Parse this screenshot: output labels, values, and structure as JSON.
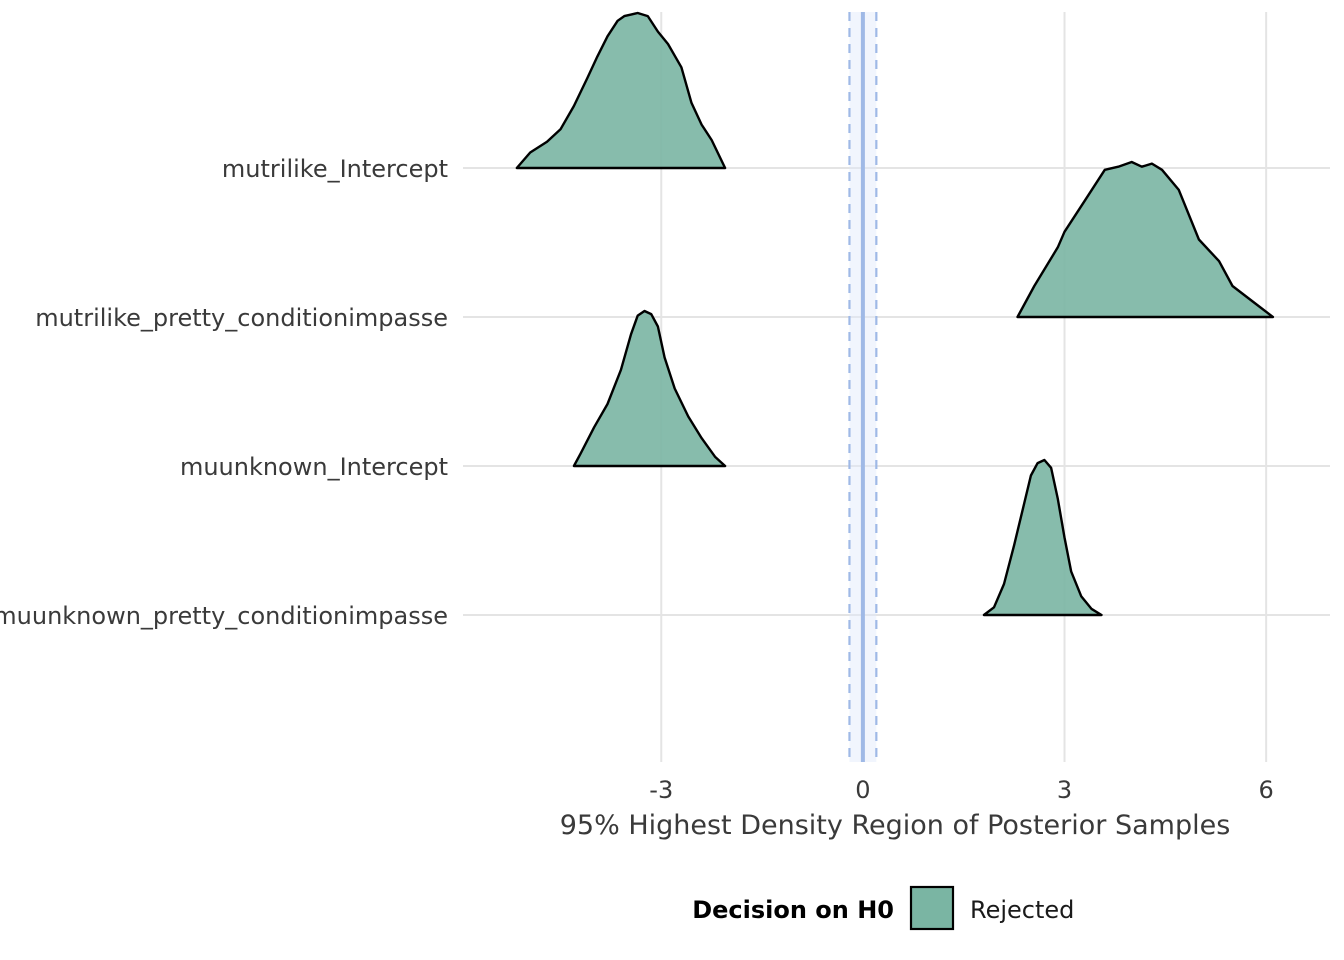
{
  "chart_data": {
    "type": "area",
    "title": "",
    "xlabel": "95% Highest Density Region of Posterior Samples",
    "ylabel": "",
    "xlim": [
      -5.95,
      6.95
    ],
    "x_ticks": [
      {
        "value": -3,
        "label": "-3"
      },
      {
        "value": 0,
        "label": "0"
      },
      {
        "value": 3,
        "label": "3"
      },
      {
        "value": 6,
        "label": "6"
      }
    ],
    "categories": [
      "mutrilike_Intercept",
      "mutrilike_pretty_conditionimpasse",
      "muunknown_Intercept",
      "muunknown_pretty_conditionimpasse"
    ],
    "reference_line": {
      "value": 0,
      "rope": [
        -0.2,
        0.2
      ]
    },
    "grid": true,
    "legend": {
      "position": "bottom",
      "title": "Decision on H0",
      "entries": [
        "Rejected"
      ]
    },
    "colors": {
      "fill": "#7ab5a3",
      "outline": "#000000",
      "reference": "#9fb9e6",
      "grid": "#e4e4e4"
    },
    "series": [
      {
        "category": "mutrilike_Intercept",
        "group": "Rejected",
        "x": [
          -5.15,
          -4.95,
          -4.7,
          -4.5,
          -4.3,
          -4.1,
          -3.95,
          -3.8,
          -3.65,
          -3.55,
          -3.45,
          -3.35,
          -3.2,
          -3.05,
          -2.9,
          -2.7,
          -2.55,
          -2.4,
          -2.25,
          -2.05
        ],
        "density": [
          0.0,
          0.1,
          0.17,
          0.25,
          0.4,
          0.58,
          0.72,
          0.85,
          0.95,
          0.98,
          0.99,
          1.0,
          0.98,
          0.88,
          0.8,
          0.65,
          0.42,
          0.28,
          0.18,
          0.0
        ]
      },
      {
        "category": "mutrilike_pretty_conditionimpasse",
        "group": "Rejected",
        "x": [
          2.3,
          2.55,
          2.9,
          3.0,
          3.3,
          3.6,
          3.8,
          4.0,
          4.15,
          4.3,
          4.45,
          4.7,
          5.0,
          5.3,
          5.5,
          5.8,
          6.1
        ],
        "density": [
          0.0,
          0.2,
          0.45,
          0.55,
          0.75,
          0.95,
          0.97,
          1.0,
          0.97,
          0.99,
          0.95,
          0.82,
          0.5,
          0.36,
          0.2,
          0.1,
          0.0
        ]
      },
      {
        "category": "muunknown_Intercept",
        "group": "Rejected",
        "x": [
          -4.3,
          -4.2,
          -4.0,
          -3.8,
          -3.6,
          -3.45,
          -3.35,
          -3.25,
          -3.15,
          -3.05,
          -2.95,
          -2.8,
          -2.6,
          -2.4,
          -2.2,
          -2.05
        ],
        "density": [
          0.0,
          0.08,
          0.25,
          0.4,
          0.62,
          0.85,
          0.97,
          1.0,
          0.98,
          0.9,
          0.7,
          0.5,
          0.32,
          0.18,
          0.06,
          0.0
        ]
      },
      {
        "category": "muunknown_pretty_conditionimpasse",
        "group": "Rejected",
        "x": [
          1.8,
          1.95,
          2.1,
          2.25,
          2.4,
          2.5,
          2.6,
          2.7,
          2.8,
          2.9,
          3.0,
          3.1,
          3.25,
          3.4,
          3.55
        ],
        "density": [
          0.0,
          0.05,
          0.2,
          0.45,
          0.72,
          0.9,
          0.98,
          1.0,
          0.95,
          0.75,
          0.5,
          0.28,
          0.12,
          0.04,
          0.0
        ]
      }
    ]
  }
}
